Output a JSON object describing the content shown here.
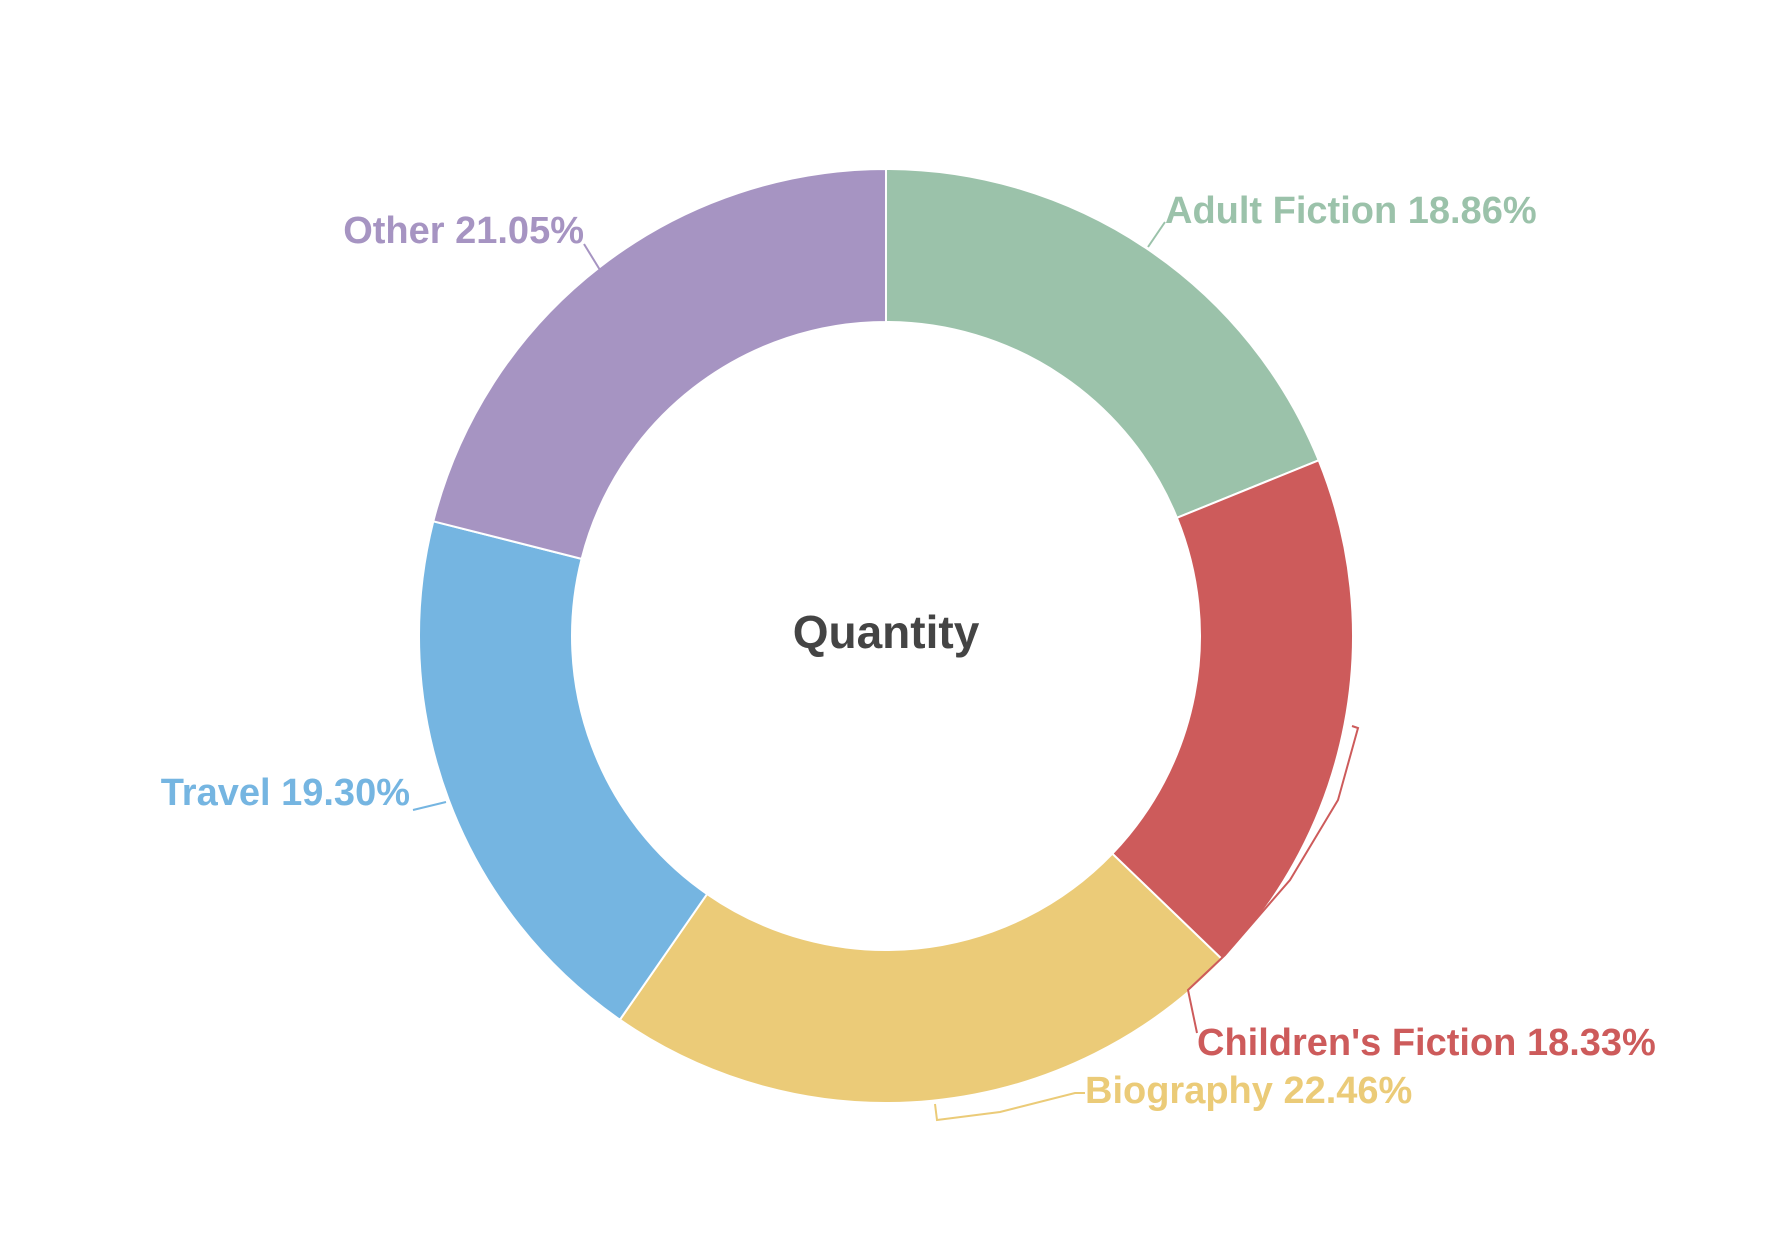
{
  "chart_data": {
    "type": "pie",
    "variant": "donut",
    "center_title": "Quantity",
    "slices": [
      {
        "name": "Adult Fiction",
        "value": 18.86,
        "label": "Adult Fiction 18.86%",
        "color": "#9bc2aa"
      },
      {
        "name": "Children's Fiction",
        "value": 18.33,
        "label": "Children's Fiction 18.33%",
        "color": "#cd5b5b"
      },
      {
        "name": "Biography",
        "value": 22.46,
        "label": "Biography 22.46%",
        "color": "#ebcb78"
      },
      {
        "name": "Travel",
        "value": 19.3,
        "label": "Travel 19.30%",
        "color": "#75b5e1"
      },
      {
        "name": "Other",
        "value": 21.05,
        "label": "Other 21.05%",
        "color": "#a694c2"
      }
    ],
    "legend": "none"
  }
}
